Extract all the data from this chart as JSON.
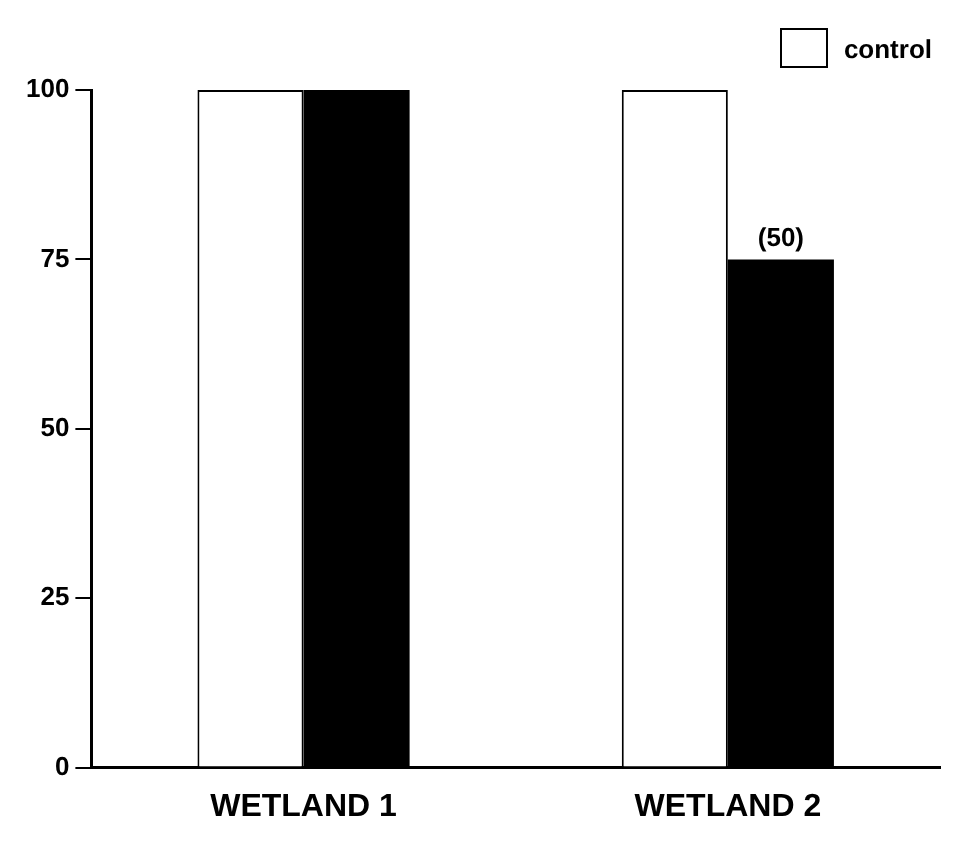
{
  "chart_data": {
    "type": "bar",
    "categories": [
      "WETLAND 1",
      "WETLAND 2"
    ],
    "series": [
      {
        "name": "control",
        "color": "#ffffff",
        "values": [
          100,
          100
        ]
      },
      {
        "color": "#000000",
        "values": [
          100,
          75
        ]
      }
    ],
    "annotations": [
      {
        "text": "(50)",
        "x": "WETLAND 2",
        "y": 75
      }
    ],
    "ylim": [
      0,
      100
    ],
    "yticks": [
      0,
      25,
      50,
      75,
      100
    ],
    "grid": false,
    "legend": "top right"
  }
}
